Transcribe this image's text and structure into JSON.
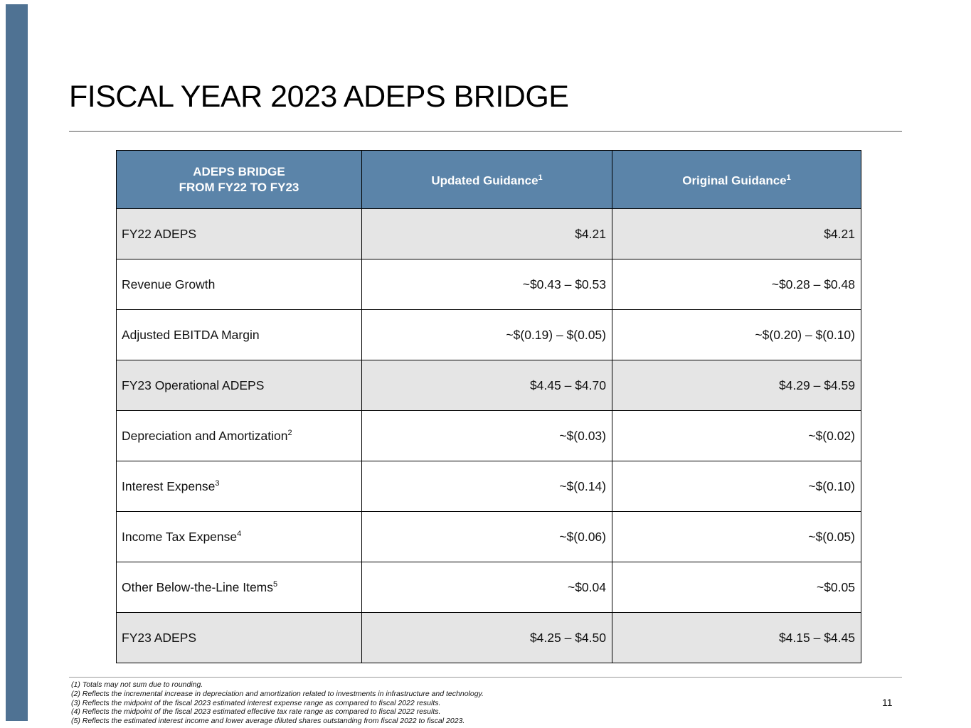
{
  "slide": {
    "title": "FISCAL YEAR 2023 ADEPS BRIDGE",
    "page_number": "11"
  },
  "colors": {
    "accent_bar": "#4f7293",
    "table_header_bg": "#5b84a9",
    "shaded_row_bg": "#e5e5e5",
    "header_text": "#ffffff"
  },
  "table": {
    "header": {
      "col1_line1": "ADEPS BRIDGE",
      "col1_line2": "FROM FY22 TO FY23",
      "col2": "Updated Guidance",
      "col2_sup": "1",
      "col3": "Original Guidance",
      "col3_sup": "1"
    },
    "rows": [
      {
        "label": "FY22 ADEPS",
        "sup": "",
        "updated": "$4.21",
        "original": "$4.21"
      },
      {
        "label": "Revenue Growth",
        "sup": "",
        "updated": "~$0.43 – $0.53",
        "original": "~$0.28 – $0.48"
      },
      {
        "label": "Adjusted EBITDA Margin",
        "sup": "",
        "updated": "~$(0.19) – $(0.05)",
        "original": "~$(0.20) – $(0.10)"
      },
      {
        "label": "FY23 Operational ADEPS",
        "sup": "",
        "updated": "$4.45 – $4.70",
        "original": "$4.29 – $4.59"
      },
      {
        "label": "Depreciation and Amortization",
        "sup": "2",
        "updated": "~$(0.03)",
        "original": "~$(0.02)"
      },
      {
        "label": "Interest Expense",
        "sup": "3",
        "updated": "~$(0.14)",
        "original": "~$(0.10)"
      },
      {
        "label": "Income Tax Expense",
        "sup": "4",
        "updated": "~$(0.06)",
        "original": "~$(0.05)"
      },
      {
        "label": "Other Below-the-Line Items",
        "sup": "5",
        "updated": "~$0.04",
        "original": "~$0.05"
      },
      {
        "label": "FY23 ADEPS",
        "sup": "",
        "updated": "$4.25 – $4.50",
        "original": "$4.15 – $4.45"
      }
    ]
  },
  "footnotes": [
    "(1) Totals may not sum due to rounding.",
    "(2) Reflects the incremental increase in depreciation and amortization related to investments in infrastructure and technology.",
    "(3) Reflects the midpoint of the fiscal 2023 estimated interest expense range as compared to fiscal 2022 results.",
    "(4) Reflects the midpoint of the fiscal 2023 estimated effective tax rate range as compared to fiscal 2022 results.",
    "(5) Reflects the estimated interest income and lower average diluted shares outstanding from fiscal 2022 to fiscal 2023."
  ]
}
